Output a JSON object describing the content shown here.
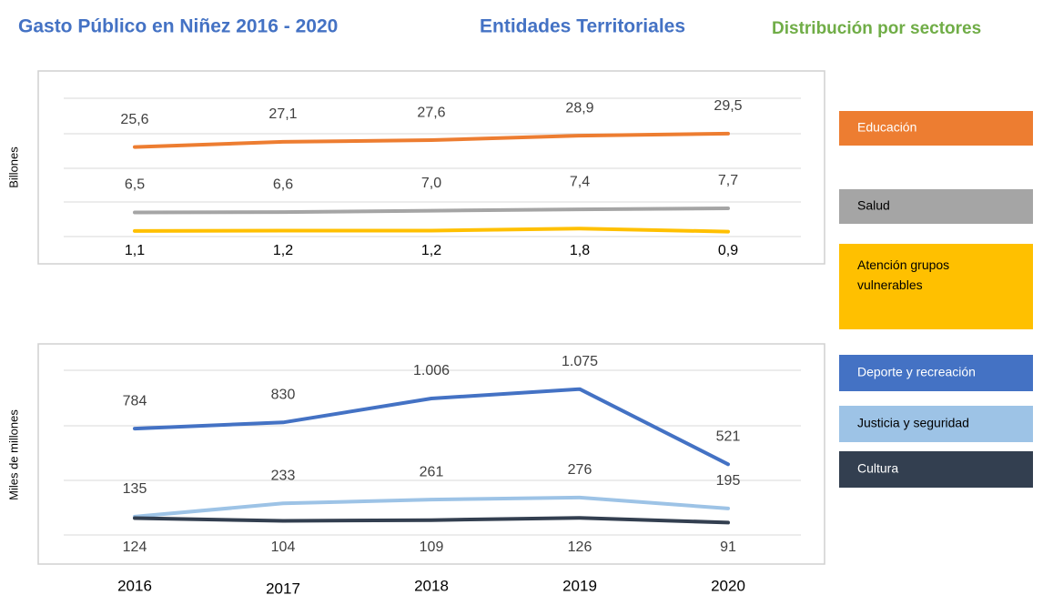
{
  "title": "Gasto Público en Niñez 2016 - 2020",
  "subtitle": "Entidades Territoriales",
  "legend_title": "Distribución por sectores",
  "chart_data": [
    {
      "type": "line",
      "y_label": "Billones",
      "ylim": [
        0,
        30
      ],
      "series": [
        {
          "name": "Educación",
          "color": "#ed7d31",
          "values": [
            25.6,
            27.1,
            27.6,
            28.9,
            29.5
          ],
          "value_labels": [
            "25,6",
            "27,1",
            "27,6",
            "28,9",
            "29,5"
          ]
        },
        {
          "name": "Salud",
          "color": "#a5a5a5",
          "values": [
            6.5,
            6.6,
            7.0,
            7.4,
            7.7
          ],
          "value_labels": [
            "6,5",
            "6,6",
            "7,0",
            "7,4",
            "7,7"
          ]
        },
        {
          "name": "Atención grupos vulnerables",
          "color": "#ffc000",
          "values": [
            1.1,
            1.2,
            1.2,
            1.8,
            0.9
          ],
          "value_labels": [
            "1,1",
            "1,2",
            "1,2",
            "1,8",
            "0,9"
          ]
        }
      ]
    },
    {
      "type": "line",
      "y_label": "Miles de millones",
      "ylim": [
        0,
        1100
      ],
      "categories": [
        "2016",
        "2017",
        "2018",
        "2019",
        "2020"
      ],
      "series": [
        {
          "name": "Deporte y recreación",
          "color": "#4472c4",
          "values": [
            784,
            830,
            1006,
            1075,
            521
          ],
          "value_labels": [
            "784",
            "830",
            "1.006",
            "1.075",
            "521"
          ]
        },
        {
          "name": "Justicia y seguridad",
          "color": "#9dc3e6",
          "values": [
            135,
            233,
            261,
            276,
            195
          ]
        },
        {
          "name": "Cultura",
          "color": "#333f50",
          "values": [
            124,
            104,
            109,
            126,
            91
          ]
        }
      ]
    }
  ]
}
